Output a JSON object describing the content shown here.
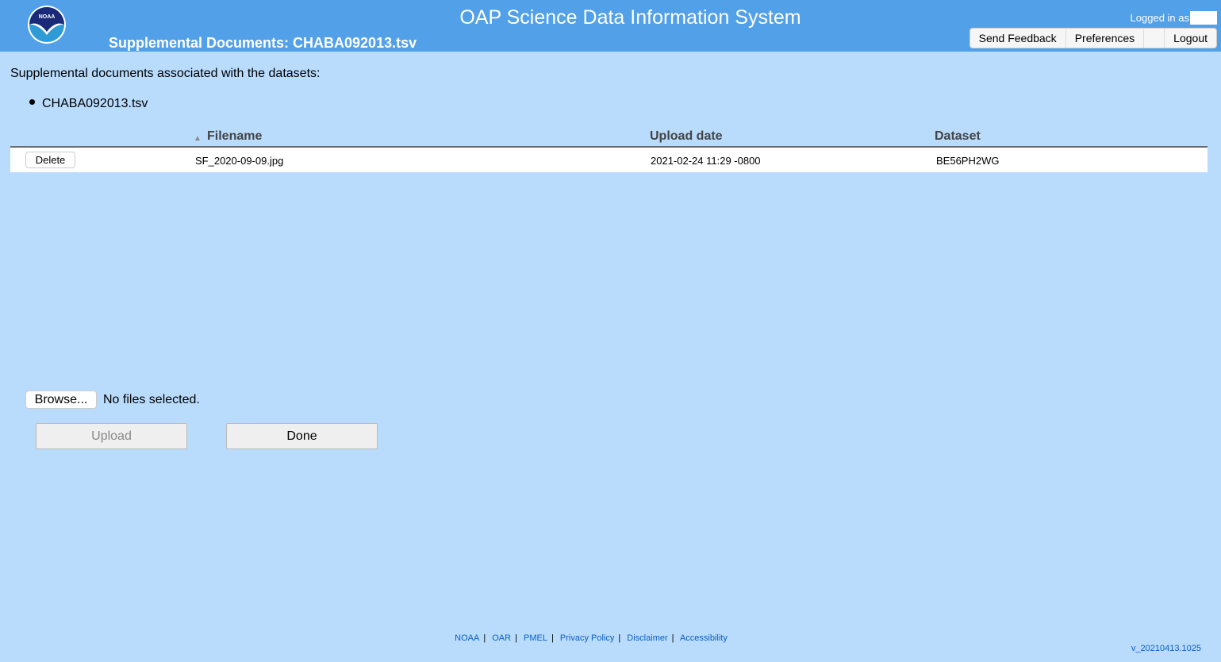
{
  "header": {
    "app_title": "OAP Science Data Information System",
    "page_title": "Supplemental Documents: CHABA092013.tsv",
    "logo_text": "NOAA",
    "logged_in_label": "Logged in as",
    "nav": [
      "Send Feedback",
      "Preferences",
      "",
      "Logout"
    ]
  },
  "main": {
    "intro": "Supplemental documents associated with the datasets:",
    "datasets": [
      "CHABA092013.tsv"
    ],
    "table": {
      "columns": [
        "Filename",
        "Upload date",
        "Dataset"
      ],
      "sort_column": "Filename",
      "sort_direction": "ascending",
      "rows": [
        {
          "action": "Delete",
          "filename": "SF_2020-09-09.jpg",
          "upload_date": "2021-02-24 11:29 -0800",
          "dataset": "BE56PH2WG"
        }
      ]
    },
    "browse_label": "Browse...",
    "file_status": "No files selected.",
    "upload_label": "Upload",
    "done_label": "Done"
  },
  "footer": {
    "links": [
      "NOAA",
      "OAR",
      "PMEL",
      "Privacy Policy",
      "Disclaimer",
      "Accessibility"
    ],
    "version": "v_20210413.1025"
  },
  "colors": {
    "header": "#52a0e8",
    "background": "#b9dcfd",
    "link": "#0a5fc4"
  }
}
